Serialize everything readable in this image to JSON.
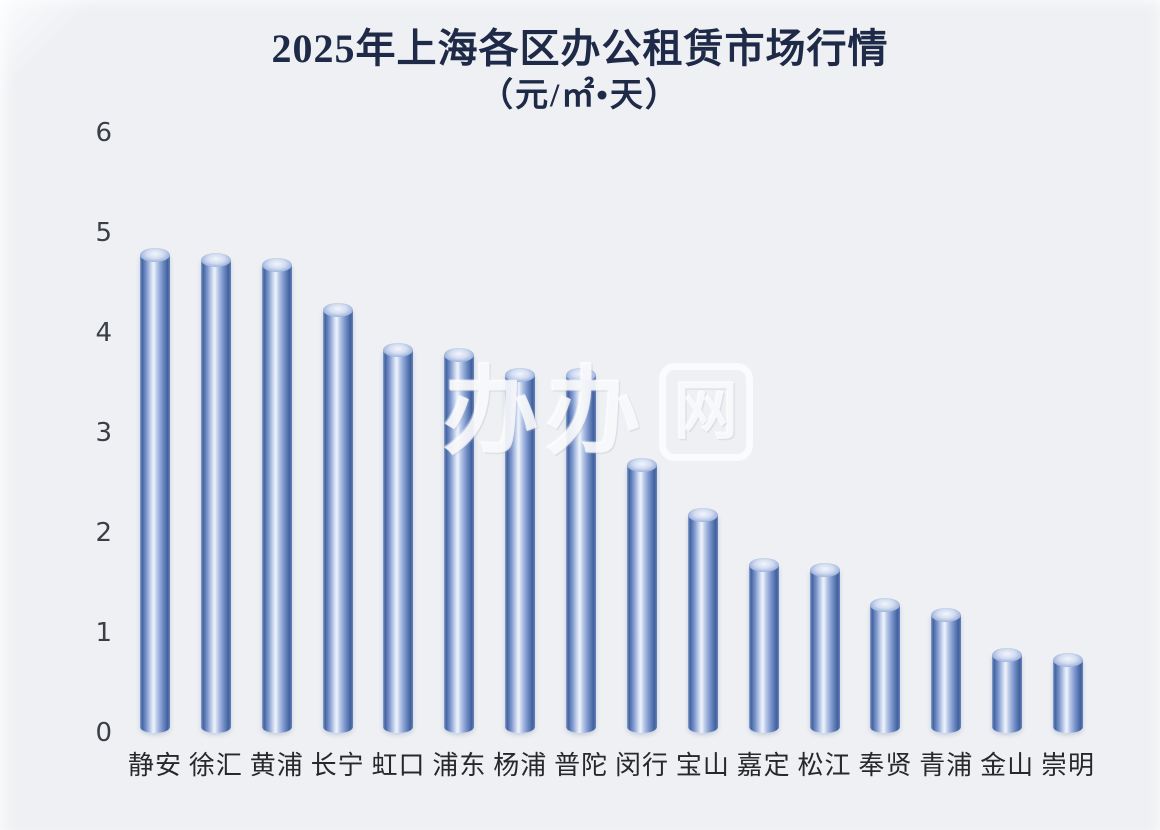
{
  "page": {
    "background": "#eef0f3"
  },
  "title": {
    "line1": "2025年上海各区办公租赁市场行情",
    "line2": "（元/㎡•天）",
    "color": "#1e2a47"
  },
  "watermark": {
    "prefix": "办办",
    "boxed": "网"
  },
  "axis": {
    "tick_color": "#3b3e45",
    "category_color": "#26282c"
  },
  "chart_data": {
    "type": "bar",
    "bar_style": "3d-cylinder",
    "title": "2025年上海各区办公租赁市场行情",
    "subtitle": "（元/㎡•天）",
    "unit_label": "元/㎡•天",
    "categories": [
      "静安",
      "徐汇",
      "黄浦",
      "长宁",
      "虹口",
      "浦东",
      "杨浦",
      "普陀",
      "闵行",
      "宝山",
      "嘉定",
      "松江",
      "奉贤",
      "青浦",
      "金山",
      "崇明"
    ],
    "values": [
      4.85,
      4.8,
      4.75,
      4.3,
      3.9,
      3.85,
      3.65,
      3.65,
      2.75,
      2.25,
      1.75,
      1.7,
      1.35,
      1.25,
      0.85,
      0.8
    ],
    "xlabel": "",
    "ylabel": "",
    "ylim": [
      0,
      6
    ],
    "yticks": [
      0,
      1,
      2,
      3,
      4,
      5,
      6
    ],
    "grid": false,
    "legend_position": "none",
    "bar_colors": {
      "edge": "#44639f",
      "mid": "#7f99cf",
      "highlight": "#eef3fb",
      "cap": "#d3ddf1"
    }
  }
}
